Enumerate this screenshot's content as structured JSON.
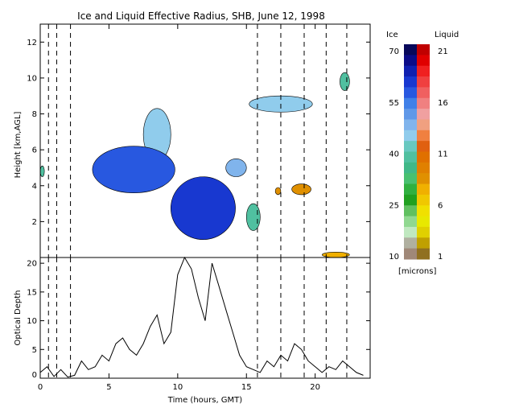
{
  "title": "Ice and Liquid Effective Radius, SHB, June 12, 1998",
  "chart_data": [
    {
      "type": "heatmap",
      "panel": "effective-radius",
      "ylabel": "Height [km,AGL]",
      "xlim": [
        0,
        24
      ],
      "ylim": [
        0,
        13
      ],
      "x_ticks": [
        0,
        5,
        10,
        15,
        20
      ],
      "y_ticks": [
        2,
        4,
        6,
        8,
        10,
        12
      ],
      "vertical_dashed_lines_hours": [
        0.6,
        1.2,
        2.2,
        15.8,
        17.5,
        19.2,
        20.8,
        22.3
      ],
      "cloud_regions": [
        {
          "phase": "ice",
          "x_range": [
            7.5,
            9.5
          ],
          "height_km": [
            5.4,
            8.3
          ],
          "radius_microns": 45
        },
        {
          "phase": "ice",
          "x_range": [
            3.8,
            9.8
          ],
          "height_km": [
            3.6,
            6.2
          ],
          "radius_microns": 58
        },
        {
          "phase": "ice",
          "x_range": [
            9.5,
            14.2
          ],
          "height_km": [
            1.0,
            4.5
          ],
          "radius_microns": 60
        },
        {
          "phase": "ice",
          "x_range": [
            13.5,
            15.0
          ],
          "height_km": [
            4.5,
            5.5
          ],
          "radius_microns": 48
        },
        {
          "phase": "ice",
          "x_range": [
            15.2,
            19.8
          ],
          "height_km": [
            8.1,
            9.0
          ],
          "radius_microns": 45
        },
        {
          "phase": "ice",
          "x_range": [
            0.0,
            0.3
          ],
          "height_km": [
            4.5,
            5.1
          ],
          "radius_microns": 38
        },
        {
          "phase": "ice",
          "x_range": [
            15.0,
            16.0
          ],
          "height_km": [
            1.5,
            3.0
          ],
          "radius_microns": 38
        },
        {
          "phase": "ice",
          "x_range": [
            21.8,
            22.5
          ],
          "height_km": [
            9.3,
            10.3
          ],
          "radius_microns": 40
        },
        {
          "phase": "liquid",
          "x_range": [
            17.1,
            17.5
          ],
          "height_km": [
            3.5,
            3.9
          ],
          "radius_microns": 8
        },
        {
          "phase": "liquid",
          "x_range": [
            18.3,
            19.7
          ],
          "height_km": [
            3.5,
            4.1
          ],
          "radius_microns": 8
        },
        {
          "phase": "liquid",
          "x_range": [
            20.5,
            22.5
          ],
          "height_km": [
            0.0,
            0.3
          ],
          "radius_microns": 7
        }
      ]
    },
    {
      "type": "line",
      "panel": "optical-depth",
      "xlabel": "Time (hours, GMT)",
      "ylabel": "Optical Depth",
      "xlim": [
        0,
        24
      ],
      "ylim": [
        0,
        21
      ],
      "x_ticks": [
        0,
        5,
        10,
        15,
        20
      ],
      "y_ticks": [
        0,
        5,
        10,
        15,
        20
      ],
      "series": [
        {
          "x": [
            0,
            0.5,
            1,
            1.5,
            2,
            2.5,
            3,
            3.5,
            4,
            4.5,
            5,
            5.5,
            6,
            6.5,
            7,
            7.5,
            8,
            8.5,
            9,
            9.5,
            10,
            10.5,
            11,
            11.5,
            12,
            12.5,
            13,
            13.5,
            14,
            14.5,
            15,
            15.5,
            16,
            16.5,
            17,
            17.5,
            18,
            18.5,
            19,
            19.5,
            20,
            20.5,
            21,
            21.5,
            22,
            22.5,
            23,
            23.5
          ],
          "y": [
            1.0,
            2.0,
            0.3,
            1.5,
            0.2,
            0.5,
            3.0,
            1.5,
            2.0,
            4.0,
            3.0,
            6.0,
            7.0,
            5.0,
            4.0,
            6.0,
            9.0,
            11.0,
            6.0,
            8.0,
            18.0,
            21.0,
            19.0,
            14.0,
            10.0,
            20.0,
            16.0,
            12.0,
            8.0,
            4.0,
            2.0,
            1.5,
            1.0,
            3.0,
            2.0,
            4.0,
            3.0,
            6.0,
            5.0,
            3.0,
            2.0,
            1.0,
            2.0,
            1.5,
            3.0,
            2.0,
            1.0,
            0.5
          ]
        }
      ]
    }
  ],
  "colorbar": {
    "ice_label": "Ice",
    "liquid_label": "Liquid",
    "unit": "[microns]",
    "ice_ticks": [
      70,
      55,
      40,
      25,
      10
    ],
    "liquid_ticks": [
      21,
      16,
      11,
      6,
      1
    ],
    "ice_colors": [
      "#08085a",
      "#0c0c88",
      "#1020b0",
      "#1838d0",
      "#2858e0",
      "#4080e8",
      "#6098e8",
      "#80b4ec",
      "#90ccec",
      "#68c8c0",
      "#50c0a0",
      "#40b888",
      "#48c070",
      "#30b040",
      "#20a020",
      "#60c060",
      "#90d890",
      "#c0e8c0",
      "#b0b0a0",
      "#a08878"
    ],
    "liquid_colors": [
      "#c00000",
      "#e00000",
      "#f02020",
      "#f04040",
      "#f06060",
      "#f08080",
      "#f0a0a0",
      "#f0a080",
      "#f08040",
      "#e06010",
      "#e07000",
      "#e08000",
      "#e09000",
      "#f0b000",
      "#f0c800",
      "#f0e000",
      "#e8e800",
      "#e0d000",
      "#c0a000",
      "#907020"
    ]
  }
}
